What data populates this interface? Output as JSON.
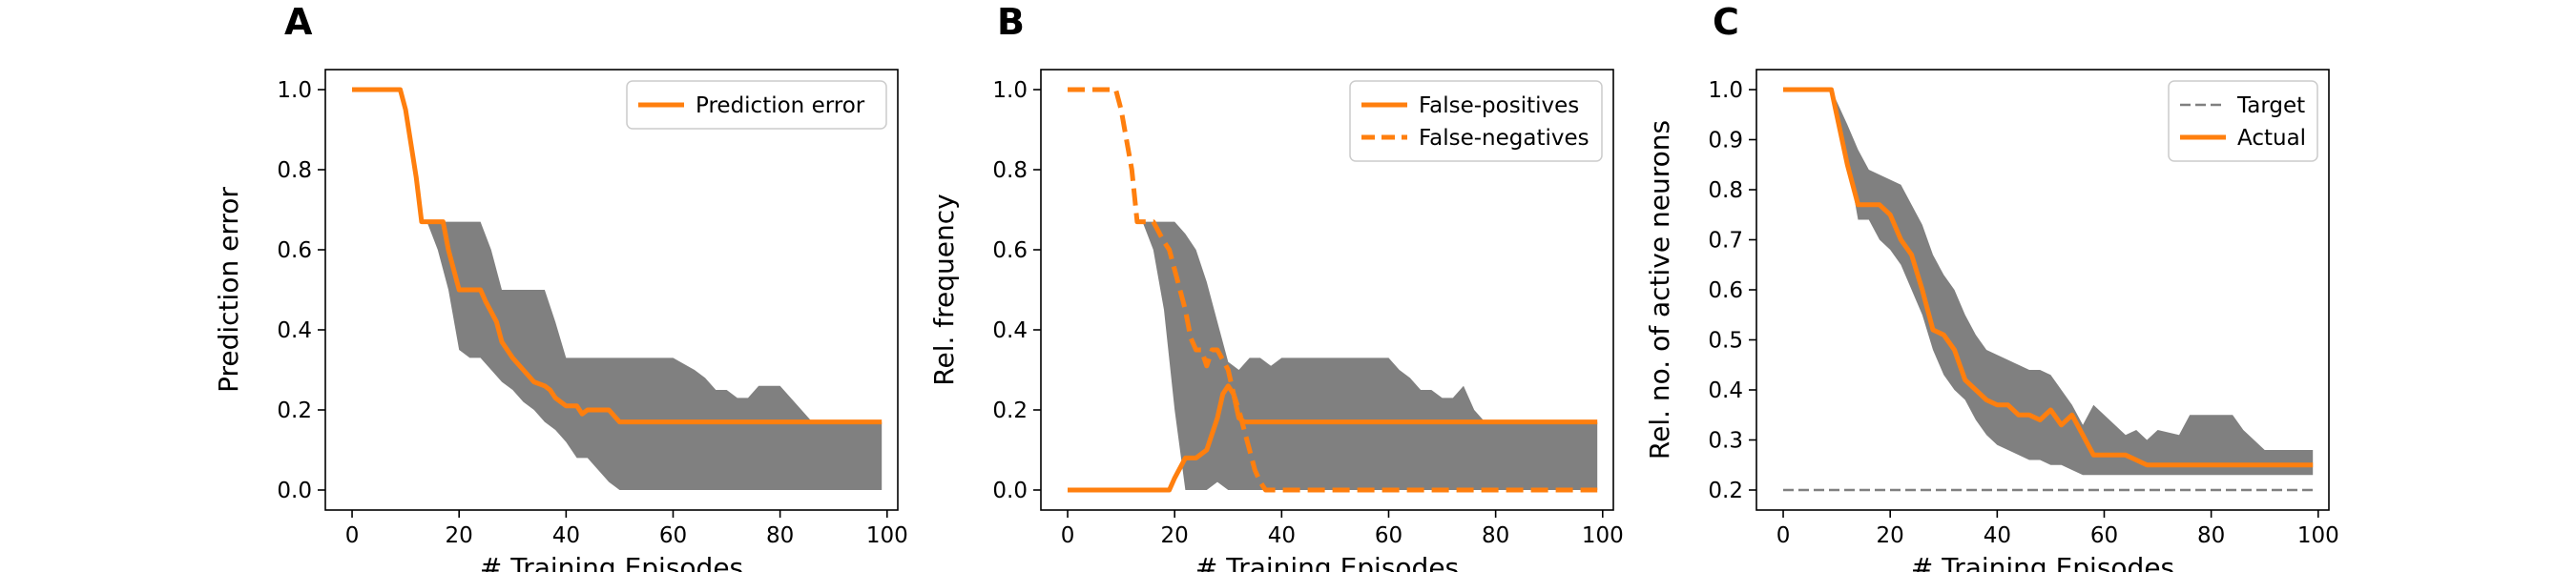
{
  "figure": {
    "panels": [
      "A",
      "B",
      "C"
    ]
  },
  "colors": {
    "orange": "#ff7f0e",
    "band": "#808080",
    "target": "#808080"
  },
  "chart_data": [
    {
      "type": "line",
      "panel": "A",
      "xlabel": "# Training Episodes",
      "ylabel": "Prediction error",
      "xlim": [
        -5,
        102
      ],
      "ylim": [
        -0.05,
        1.05
      ],
      "xticks": [
        0,
        20,
        40,
        60,
        80,
        100
      ],
      "yticks": [
        0.0,
        0.2,
        0.4,
        0.6,
        0.8,
        1.0
      ],
      "ytick_labels": [
        "0.0",
        "0.2",
        "0.4",
        "0.6",
        "0.8",
        "1.0"
      ],
      "legend": "top-right",
      "series": [
        {
          "name": "Prediction error",
          "style": "solid",
          "x": [
            0,
            9,
            10,
            12,
            13,
            14,
            17,
            18,
            20,
            21,
            24,
            25,
            27,
            28,
            30,
            32,
            34,
            36,
            37,
            38,
            40,
            42,
            43,
            44,
            46,
            48,
            50,
            60,
            80,
            99
          ],
          "y": [
            1.0,
            1.0,
            0.95,
            0.78,
            0.67,
            0.67,
            0.67,
            0.6,
            0.5,
            0.5,
            0.5,
            0.47,
            0.42,
            0.37,
            0.33,
            0.3,
            0.27,
            0.26,
            0.25,
            0.23,
            0.21,
            0.21,
            0.19,
            0.2,
            0.2,
            0.2,
            0.17,
            0.17,
            0.17,
            0.17
          ]
        }
      ],
      "bands": [
        {
          "x": [
            0,
            9,
            12,
            14,
            16,
            18,
            20,
            22,
            24,
            26,
            28,
            30,
            32,
            34,
            36,
            38,
            40,
            42,
            44,
            46,
            48,
            50,
            55,
            60,
            64,
            66,
            68,
            70,
            72,
            74,
            76,
            80,
            84,
            86,
            90,
            99
          ],
          "upper": [
            1.0,
            1.0,
            0.85,
            0.67,
            0.67,
            0.67,
            0.67,
            0.67,
            0.67,
            0.6,
            0.5,
            0.5,
            0.5,
            0.5,
            0.5,
            0.42,
            0.33,
            0.33,
            0.33,
            0.33,
            0.33,
            0.33,
            0.33,
            0.33,
            0.3,
            0.28,
            0.25,
            0.25,
            0.23,
            0.23,
            0.26,
            0.26,
            0.2,
            0.17,
            0.17,
            0.17
          ],
          "lower": [
            1.0,
            1.0,
            0.85,
            0.67,
            0.6,
            0.5,
            0.35,
            0.33,
            0.33,
            0.3,
            0.27,
            0.25,
            0.22,
            0.2,
            0.17,
            0.15,
            0.12,
            0.08,
            0.08,
            0.05,
            0.02,
            0.0,
            0.0,
            0.0,
            0.0,
            0.0,
            0.0,
            0.0,
            0.0,
            0.0,
            0.0,
            0.0,
            0.0,
            0.0,
            0.0,
            0.0
          ]
        }
      ]
    },
    {
      "type": "line",
      "panel": "B",
      "xlabel": "# Training Episodes",
      "ylabel": "Rel. frequency",
      "xlim": [
        -5,
        102
      ],
      "ylim": [
        -0.05,
        1.05
      ],
      "xticks": [
        0,
        20,
        40,
        60,
        80,
        100
      ],
      "yticks": [
        0.0,
        0.2,
        0.4,
        0.6,
        0.8,
        1.0
      ],
      "ytick_labels": [
        "0.0",
        "0.2",
        "0.4",
        "0.6",
        "0.8",
        "1.0"
      ],
      "legend": "top-right",
      "series": [
        {
          "name": "False-positives",
          "style": "solid",
          "x": [
            0,
            19,
            20,
            22,
            24,
            26,
            27,
            28,
            29,
            30,
            31,
            32,
            33,
            35,
            37,
            40,
            50,
            70,
            99
          ],
          "y": [
            0.0,
            0.0,
            0.03,
            0.08,
            0.08,
            0.1,
            0.14,
            0.18,
            0.24,
            0.26,
            0.24,
            0.18,
            0.17,
            0.17,
            0.17,
            0.17,
            0.17,
            0.17,
            0.17
          ]
        },
        {
          "name": "False-negatives",
          "style": "dashed",
          "x": [
            0,
            9,
            10,
            12,
            13,
            14,
            16,
            18,
            19,
            20,
            21,
            22,
            23,
            24,
            25,
            26,
            27,
            28,
            30,
            31,
            32,
            34,
            35,
            36,
            37,
            40,
            60,
            99
          ],
          "y": [
            1.0,
            1.0,
            0.95,
            0.8,
            0.67,
            0.67,
            0.67,
            0.62,
            0.6,
            0.55,
            0.5,
            0.45,
            0.38,
            0.35,
            0.35,
            0.31,
            0.35,
            0.35,
            0.3,
            0.24,
            0.2,
            0.1,
            0.05,
            0.02,
            0.0,
            0.0,
            0.0,
            0.0
          ]
        }
      ],
      "bands": [
        {
          "x": [
            0,
            9,
            12,
            14,
            16,
            18,
            20,
            22,
            24,
            26,
            28,
            30,
            32,
            34,
            36,
            38,
            40,
            42,
            50,
            60,
            62,
            64,
            66,
            68,
            70,
            72,
            74,
            76,
            78,
            80,
            99
          ],
          "upper": [
            1.0,
            1.0,
            0.85,
            0.67,
            0.67,
            0.67,
            0.67,
            0.64,
            0.6,
            0.52,
            0.42,
            0.32,
            0.3,
            0.33,
            0.33,
            0.31,
            0.33,
            0.33,
            0.33,
            0.33,
            0.3,
            0.28,
            0.25,
            0.25,
            0.23,
            0.23,
            0.26,
            0.2,
            0.17,
            0.17,
            0.17
          ],
          "lower": [
            1.0,
            1.0,
            0.85,
            0.67,
            0.6,
            0.45,
            0.2,
            0.0,
            0.0,
            0.0,
            0.02,
            0.0,
            0.0,
            0.0,
            0.0,
            0.0,
            0.0,
            0.0,
            0.0,
            0.0,
            0.0,
            0.0,
            0.0,
            0.0,
            0.0,
            0.0,
            0.0,
            0.0,
            0.0,
            0.0,
            0.0
          ]
        }
      ]
    },
    {
      "type": "line",
      "panel": "C",
      "xlabel": "# Training Episodes",
      "ylabel": "Rel. no. of active neurons",
      "xlim": [
        -5,
        102
      ],
      "ylim": [
        0.16,
        1.04
      ],
      "xticks": [
        0,
        20,
        40,
        60,
        80,
        100
      ],
      "yticks": [
        0.2,
        0.3,
        0.4,
        0.5,
        0.6,
        0.7,
        0.8,
        0.9,
        1.0
      ],
      "ytick_labels": [
        "0.2",
        "0.3",
        "0.4",
        "0.5",
        "0.6",
        "0.7",
        "0.8",
        "0.9",
        "1.0"
      ],
      "legend": "top-right",
      "series": [
        {
          "name": "Target",
          "style": "dashed-thin",
          "x": [
            0,
            99
          ],
          "y": [
            0.2,
            0.2
          ]
        },
        {
          "name": "Actual",
          "style": "solid",
          "x": [
            0,
            9,
            10,
            12,
            14,
            16,
            18,
            20,
            22,
            24,
            26,
            28,
            30,
            32,
            34,
            36,
            38,
            40,
            42,
            44,
            46,
            48,
            50,
            52,
            54,
            56,
            58,
            60,
            62,
            64,
            66,
            68,
            70,
            80,
            90,
            99
          ],
          "y": [
            1.0,
            1.0,
            0.95,
            0.85,
            0.77,
            0.77,
            0.77,
            0.75,
            0.7,
            0.67,
            0.6,
            0.52,
            0.51,
            0.48,
            0.42,
            0.4,
            0.38,
            0.37,
            0.37,
            0.35,
            0.35,
            0.34,
            0.36,
            0.33,
            0.35,
            0.31,
            0.27,
            0.27,
            0.27,
            0.27,
            0.26,
            0.25,
            0.25,
            0.25,
            0.25,
            0.25
          ]
        }
      ],
      "bands": [
        {
          "x": [
            0,
            9,
            12,
            14,
            16,
            18,
            20,
            22,
            24,
            26,
            28,
            30,
            32,
            34,
            36,
            38,
            40,
            42,
            44,
            46,
            48,
            50,
            52,
            54,
            56,
            58,
            60,
            62,
            64,
            66,
            68,
            70,
            74,
            76,
            80,
            84,
            86,
            90,
            99
          ],
          "upper": [
            1.0,
            1.0,
            0.93,
            0.88,
            0.84,
            0.83,
            0.82,
            0.81,
            0.77,
            0.73,
            0.67,
            0.63,
            0.6,
            0.55,
            0.51,
            0.48,
            0.47,
            0.46,
            0.45,
            0.44,
            0.44,
            0.43,
            0.4,
            0.37,
            0.33,
            0.37,
            0.35,
            0.33,
            0.31,
            0.32,
            0.3,
            0.32,
            0.31,
            0.35,
            0.35,
            0.35,
            0.32,
            0.28,
            0.28
          ],
          "lower": [
            1.0,
            1.0,
            0.86,
            0.74,
            0.74,
            0.7,
            0.68,
            0.65,
            0.6,
            0.55,
            0.48,
            0.43,
            0.4,
            0.38,
            0.34,
            0.31,
            0.29,
            0.28,
            0.27,
            0.26,
            0.26,
            0.25,
            0.25,
            0.24,
            0.23,
            0.23,
            0.23,
            0.23,
            0.23,
            0.23,
            0.23,
            0.23,
            0.23,
            0.23,
            0.23,
            0.23,
            0.23,
            0.23,
            0.23
          ]
        }
      ]
    }
  ]
}
